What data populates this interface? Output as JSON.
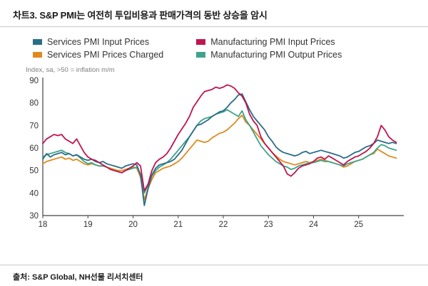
{
  "title": "차트3. S&P PMI는 여전히 투입비용과 판매가격의 동반 상승을 암시",
  "source": "출처: S&P Global, NH선물 리서치센터",
  "chart_data": {
    "type": "line",
    "note": "Index, sa, >50 = inflation m/m",
    "x_start": 2018,
    "x_step_months": 1,
    "x_range": [
      2018,
      2026
    ],
    "ylim": [
      30,
      90
    ],
    "yticks": [
      30,
      40,
      50,
      60,
      70,
      80,
      90
    ],
    "xticks": [
      2018,
      2019,
      2020,
      2021,
      2022,
      2023,
      2024,
      2025
    ],
    "xtick_labels": [
      "18",
      "19",
      "20",
      "21",
      "22",
      "23",
      "24",
      "25"
    ],
    "grid": false,
    "legend_position": "top",
    "axis_color": "#444444",
    "draw_order": [
      2,
      3,
      0,
      1
    ],
    "series": [
      {
        "name": "Services PMI Input Prices",
        "color": "#2a6d87",
        "values": [
          55,
          57.5,
          56,
          57,
          57.5,
          58,
          57,
          57.5,
          56.5,
          57,
          56,
          55,
          54.5,
          55,
          54,
          53.5,
          54,
          53,
          52.5,
          52,
          51.5,
          51,
          52,
          52.5,
          53,
          52.5,
          48,
          34.5,
          42,
          48,
          51,
          52.5,
          53,
          53.5,
          54,
          55,
          57,
          59,
          62,
          65,
          67.5,
          70,
          70.5,
          71.5,
          72.5,
          74,
          75,
          76,
          76.5,
          78,
          80,
          81.5,
          83.5,
          84,
          80.5,
          77,
          74,
          72,
          70,
          68,
          65,
          63,
          60.5,
          59,
          58,
          57.5,
          57,
          56.5,
          57,
          58,
          58.5,
          57.5,
          58,
          58.5,
          59,
          58.5,
          58,
          57.5,
          57,
          56.5,
          55.5,
          56,
          57,
          58,
          58.5,
          59.5,
          60.5,
          61,
          62,
          63.5,
          63,
          62.5,
          62,
          62.5,
          62
        ]
      },
      {
        "name": "Manufacturing PMI Input Prices",
        "color": "#c0154e",
        "values": [
          62,
          64,
          65,
          66,
          65.5,
          66,
          64,
          63,
          62,
          64,
          61,
          58,
          56,
          55,
          54.5,
          53.5,
          52.5,
          51.5,
          50.5,
          50,
          49.5,
          49,
          50,
          51,
          52,
          53.5,
          52,
          41,
          44,
          50,
          53.5,
          55,
          56,
          57.5,
          60,
          63,
          66,
          68.5,
          71,
          74,
          78,
          80.5,
          83,
          85,
          85.5,
          86,
          87,
          86.5,
          87,
          88,
          87.5,
          86.5,
          84.5,
          83,
          80,
          75,
          72,
          70,
          65,
          62,
          60,
          58,
          56,
          54,
          52,
          48.5,
          47.5,
          49,
          51,
          52,
          52.5,
          53,
          54,
          55.5,
          56,
          55,
          56.5,
          55.5,
          54.5,
          53.5,
          52.5,
          54,
          55,
          56,
          56.5,
          57.5,
          58.5,
          60,
          62,
          65,
          70,
          68,
          65,
          63.5,
          62.5
        ]
      },
      {
        "name": "Services PMI Prices Charged",
        "color": "#e08a1e",
        "values": [
          53,
          54,
          54.5,
          55,
          55.5,
          56,
          55,
          55.5,
          54.5,
          55,
          54,
          53,
          52.5,
          53,
          52.5,
          52,
          52,
          51.5,
          51,
          50.5,
          50,
          50,
          50.5,
          51,
          51.5,
          51,
          47,
          37,
          42,
          46,
          49,
          50,
          51,
          51.5,
          52,
          53,
          54,
          55.5,
          57.5,
          59.5,
          61.5,
          63.5,
          63,
          62.5,
          63,
          64.5,
          65.5,
          66.5,
          67,
          68,
          69.5,
          71,
          73,
          74.5,
          71.5,
          70,
          68,
          66,
          64,
          62,
          60,
          58,
          56.5,
          55,
          54,
          53.5,
          53,
          52.5,
          53,
          53.5,
          54,
          53.5,
          54,
          54.5,
          55,
          54.5,
          54,
          53.5,
          53,
          52.5,
          51.5,
          52,
          53,
          54,
          54.5,
          55,
          56,
          57,
          57.5,
          59.5,
          58.5,
          57.5,
          56.5,
          56,
          55.5
        ]
      },
      {
        "name": "Manufacturing PMI Output Prices",
        "color": "#3fa38b",
        "values": [
          56,
          57,
          57.5,
          58,
          58.5,
          59,
          58,
          57.5,
          56.5,
          57,
          55.5,
          54,
          53,
          53.5,
          52.5,
          52,
          52,
          51.5,
          50.5,
          50,
          49.5,
          49,
          50,
          50.5,
          51,
          51.5,
          48.5,
          40,
          43.5,
          47.5,
          50,
          51.5,
          52.5,
          53.5,
          55,
          57,
          59,
          61,
          63,
          65,
          67.5,
          70,
          72,
          73,
          73.5,
          74,
          75,
          75.5,
          76,
          77,
          76,
          75,
          74,
          76.5,
          72.5,
          70,
          67,
          64,
          61,
          59,
          57,
          55.5,
          54,
          53,
          52,
          51.5,
          50.5,
          51,
          52,
          52.5,
          53,
          53.5,
          53.5,
          54,
          54.5,
          54,
          54,
          53.5,
          53,
          52.5,
          52,
          53,
          53.5,
          54,
          54.5,
          55,
          56,
          57,
          58,
          60,
          61.5,
          61,
          60,
          59.5,
          59
        ]
      }
    ]
  }
}
